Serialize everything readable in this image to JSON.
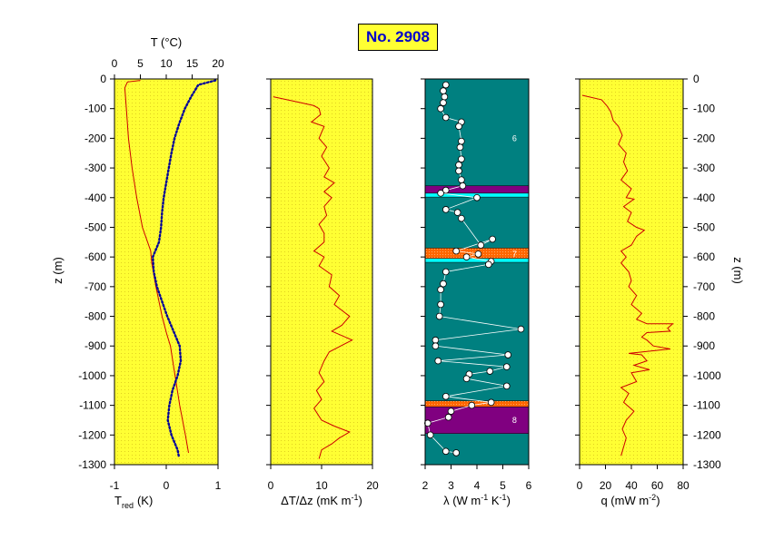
{
  "title": "No. 2908",
  "depth_axis": {
    "label_left": "z  (m)",
    "label_right": "z  (m)",
    "range": [
      0,
      -1300
    ],
    "ticks": [
      0,
      -100,
      -200,
      -300,
      -400,
      -500,
      -600,
      -700,
      -800,
      -900,
      -1000,
      -1100,
      -1200,
      -1300
    ],
    "tick_labels": [
      "0",
      "-100",
      "-200",
      "-300",
      "-400",
      "-500",
      "-600",
      "-700",
      "-800",
      "-900",
      "-1000",
      "-1100",
      "-1200",
      "-1300"
    ],
    "tick_labels_right": [
      "0",
      "-100",
      "-200",
      "-300",
      "-400",
      "-500",
      "-600",
      "-700",
      "-800",
      "-900",
      "-1000",
      "-1100",
      "-1200",
      "-1300"
    ]
  },
  "colors": {
    "panel_bg": "#ffff33",
    "lambda_bg": "#008080",
    "curve": "#cc0000",
    "temperature_dots": "#000099",
    "purple_layer": "#800080",
    "cyan_layer": "#00ffff",
    "orange_layer": "#ff6600",
    "title_text": "#0000cc"
  },
  "chart_data": [
    {
      "type": "line",
      "id": "temperature",
      "xlabel_bottom": "T",
      "xlabel_bottom_sub": "red",
      "xlabel_bottom_unit": "(K)",
      "xlim_bottom": [
        -1,
        1
      ],
      "xticks_bottom": [
        "-1",
        "0",
        "1"
      ],
      "xlabel_top": "T  (°C)",
      "xlim_top": [
        0,
        20
      ],
      "xticks_top": [
        "0",
        "5",
        "10",
        "15",
        "20"
      ],
      "series": [
        {
          "axis": "bottom",
          "style": "solid",
          "points": [
            [
              -0.5,
              -5
            ],
            [
              -0.75,
              -10
            ],
            [
              -0.8,
              -30
            ],
            [
              -0.77,
              -100
            ],
            [
              -0.73,
              -200
            ],
            [
              -0.66,
              -300
            ],
            [
              -0.57,
              -400
            ],
            [
              -0.46,
              -500
            ],
            [
              -0.3,
              -580
            ],
            [
              -0.28,
              -620
            ],
            [
              -0.2,
              -700
            ],
            [
              -0.08,
              -800
            ],
            [
              0.01,
              -860
            ],
            [
              0.08,
              -900
            ],
            [
              0.17,
              -1000
            ],
            [
              0.26,
              -1100
            ],
            [
              0.37,
              -1200
            ],
            [
              0.43,
              -1260
            ]
          ]
        },
        {
          "axis": "top",
          "style": "dotted",
          "points": [
            [
              19.5,
              -5
            ],
            [
              16.2,
              -20
            ],
            [
              14.8,
              -60
            ],
            [
              13.6,
              -100
            ],
            [
              12.5,
              -150
            ],
            [
              11.6,
              -200
            ],
            [
              11.0,
              -250
            ],
            [
              10.5,
              -300
            ],
            [
              10.0,
              -350
            ],
            [
              9.5,
              -400
            ],
            [
              9.2,
              -450
            ],
            [
              9.0,
              -500
            ],
            [
              8.6,
              -550
            ],
            [
              7.4,
              -600
            ],
            [
              7.6,
              -650
            ],
            [
              8.2,
              -700
            ],
            [
              9.2,
              -750
            ],
            [
              10.2,
              -800
            ],
            [
              11.4,
              -850
            ],
            [
              12.6,
              -900
            ],
            [
              12.8,
              -950
            ],
            [
              12.2,
              -1000
            ],
            [
              11.2,
              -1050
            ],
            [
              10.6,
              -1100
            ],
            [
              10.3,
              -1150
            ],
            [
              11.0,
              -1200
            ],
            [
              12.2,
              -1250
            ],
            [
              12.4,
              -1270
            ]
          ]
        }
      ]
    },
    {
      "type": "line",
      "id": "gradient",
      "xlabel": "ΔT/Δz  (mK m",
      "xlabel_sup": "-1",
      "xlabel_end": ")",
      "xlim": [
        0,
        20
      ],
      "xticks": [
        "0",
        "10",
        "20"
      ],
      "series": [
        {
          "style": "solid",
          "points": [
            [
              0.5,
              -60
            ],
            [
              6,
              -80
            ],
            [
              8.5,
              -90
            ],
            [
              9.5,
              -100
            ],
            [
              9.8,
              -120
            ],
            [
              8,
              -145
            ],
            [
              10.5,
              -160
            ],
            [
              9.5,
              -200
            ],
            [
              11,
              -230
            ],
            [
              10,
              -260
            ],
            [
              11.5,
              -300
            ],
            [
              10.5,
              -330
            ],
            [
              12.5,
              -350
            ],
            [
              10.5,
              -380
            ],
            [
              12,
              -400
            ],
            [
              10.5,
              -430
            ],
            [
              11,
              -460
            ],
            [
              9.5,
              -490
            ],
            [
              10.5,
              -520
            ],
            [
              10.5,
              -550
            ],
            [
              8.5,
              -580
            ],
            [
              10.5,
              -600
            ],
            [
              9.5,
              -630
            ],
            [
              12,
              -660
            ],
            [
              11.5,
              -700
            ],
            [
              13.5,
              -730
            ],
            [
              12.5,
              -760
            ],
            [
              15.5,
              -800
            ],
            [
              14,
              -830
            ],
            [
              12,
              -850
            ],
            [
              16,
              -880
            ],
            [
              11.5,
              -920
            ],
            [
              10.5,
              -950
            ],
            [
              9.5,
              -990
            ],
            [
              10.5,
              -1020
            ],
            [
              9,
              -1050
            ],
            [
              10,
              -1080
            ],
            [
              8.5,
              -1110
            ],
            [
              10,
              -1150
            ],
            [
              12.5,
              -1170
            ],
            [
              15.5,
              -1190
            ],
            [
              13.5,
              -1210
            ],
            [
              12,
              -1230
            ],
            [
              10,
              -1250
            ],
            [
              9.5,
              -1280
            ]
          ]
        }
      ]
    },
    {
      "type": "scatter",
      "id": "conductivity",
      "xlabel": "λ  (W m",
      "xlabel_sup1": "-1",
      "xlabel_mid": " K",
      "xlabel_sup2": "-1",
      "xlabel_end": ")",
      "xlim": [
        2,
        6
      ],
      "xticks": [
        "2",
        "3",
        "4",
        "5",
        "6"
      ],
      "layers": [
        {
          "top": -360,
          "bottom": -385,
          "color": "purple"
        },
        {
          "top": -385,
          "bottom": -398,
          "color": "cyan"
        },
        {
          "top": -570,
          "bottom": -605,
          "color": "orange"
        },
        {
          "top": -605,
          "bottom": -618,
          "color": "cyan"
        },
        {
          "top": -1085,
          "bottom": -1105,
          "color": "orange"
        },
        {
          "top": -1105,
          "bottom": -1195,
          "color": "purple"
        }
      ],
      "unit_labels": [
        {
          "text": "6",
          "x": 5.45,
          "z": -200
        },
        {
          "text": "7",
          "x": 5.45,
          "z": -590
        },
        {
          "text": "8",
          "x": 5.45,
          "z": -1150
        }
      ],
      "points": [
        [
          2.8,
          -20
        ],
        [
          2.7,
          -40
        ],
        [
          2.75,
          -60
        ],
        [
          2.7,
          -80
        ],
        [
          2.6,
          -100
        ],
        [
          2.8,
          -130
        ],
        [
          3.4,
          -145
        ],
        [
          3.3,
          -160
        ],
        [
          3.4,
          -210
        ],
        [
          3.35,
          -230
        ],
        [
          3.4,
          -270
        ],
        [
          3.3,
          -290
        ],
        [
          3.3,
          -310
        ],
        [
          3.4,
          -340
        ],
        [
          3.45,
          -360
        ],
        [
          2.8,
          -375
        ],
        [
          2.6,
          -385
        ],
        [
          4,
          -400
        ],
        [
          2.8,
          -440
        ],
        [
          3.25,
          -450
        ],
        [
          3.4,
          -470
        ],
        [
          4.15,
          -560
        ],
        [
          4.6,
          -540
        ],
        [
          3.2,
          -580
        ],
        [
          4.05,
          -590
        ],
        [
          3.6,
          -600
        ],
        [
          4.55,
          -615
        ],
        [
          4.45,
          -625
        ],
        [
          2.8,
          -650
        ],
        [
          2.7,
          -690
        ],
        [
          2.6,
          -710
        ],
        [
          2.6,
          -760
        ],
        [
          2.55,
          -800
        ],
        [
          5.7,
          -843
        ],
        [
          2.4,
          -880
        ],
        [
          2.4,
          -900
        ],
        [
          5.2,
          -930
        ],
        [
          2.5,
          -950
        ],
        [
          5.15,
          -970
        ],
        [
          4.5,
          -985
        ],
        [
          3.7,
          -995
        ],
        [
          3.6,
          -1010
        ],
        [
          5.15,
          -1035
        ],
        [
          2.8,
          -1070
        ],
        [
          4.55,
          -1090
        ],
        [
          3.8,
          -1100
        ],
        [
          3,
          -1120
        ],
        [
          2.9,
          -1140
        ],
        [
          2.1,
          -1160
        ],
        [
          2.2,
          -1200
        ],
        [
          2.8,
          -1255
        ],
        [
          3.2,
          -1260
        ]
      ]
    },
    {
      "type": "line",
      "id": "heat_flow",
      "xlabel": "q  (mW m",
      "xlabel_sup": "-2",
      "xlabel_end": ")",
      "xlim": [
        0,
        80
      ],
      "xticks": [
        "0",
        "20",
        "40",
        "60",
        "80"
      ],
      "series": [
        {
          "style": "solid",
          "points": [
            [
              2,
              -55
            ],
            [
              17,
              -70
            ],
            [
              21,
              -90
            ],
            [
              24,
              -110
            ],
            [
              26,
              -140
            ],
            [
              30,
              -160
            ],
            [
              33,
              -190
            ],
            [
              30,
              -220
            ],
            [
              36,
              -250
            ],
            [
              34,
              -280
            ],
            [
              37,
              -310
            ],
            [
              32,
              -340
            ],
            [
              40,
              -370
            ],
            [
              36,
              -400
            ],
            [
              42,
              -405
            ],
            [
              34,
              -430
            ],
            [
              40,
              -450
            ],
            [
              37,
              -480
            ],
            [
              44,
              -500
            ],
            [
              50,
              -510
            ],
            [
              44,
              -530
            ],
            [
              40,
              -560
            ],
            [
              32,
              -580
            ],
            [
              36,
              -600
            ],
            [
              32,
              -620
            ],
            [
              38,
              -650
            ],
            [
              40,
              -680
            ],
            [
              38,
              -700
            ],
            [
              44,
              -730
            ],
            [
              40,
              -760
            ],
            [
              48,
              -790
            ],
            [
              44,
              -810
            ],
            [
              52,
              -825
            ],
            [
              72,
              -825
            ],
            [
              68,
              -840
            ],
            [
              70,
              -850
            ],
            [
              52,
              -855
            ],
            [
              48,
              -870
            ],
            [
              52,
              -880
            ],
            [
              57,
              -900
            ],
            [
              70,
              -910
            ],
            [
              38,
              -925
            ],
            [
              48,
              -930
            ],
            [
              52,
              -950
            ],
            [
              42,
              -965
            ],
            [
              54,
              -980
            ],
            [
              40,
              -990
            ],
            [
              44,
              -1020
            ],
            [
              32,
              -1040
            ],
            [
              38,
              -1060
            ],
            [
              34,
              -1090
            ],
            [
              42,
              -1120
            ],
            [
              36,
              -1150
            ],
            [
              33,
              -1180
            ],
            [
              36,
              -1210
            ],
            [
              34,
              -1240
            ],
            [
              32,
              -1270
            ]
          ]
        }
      ]
    }
  ]
}
